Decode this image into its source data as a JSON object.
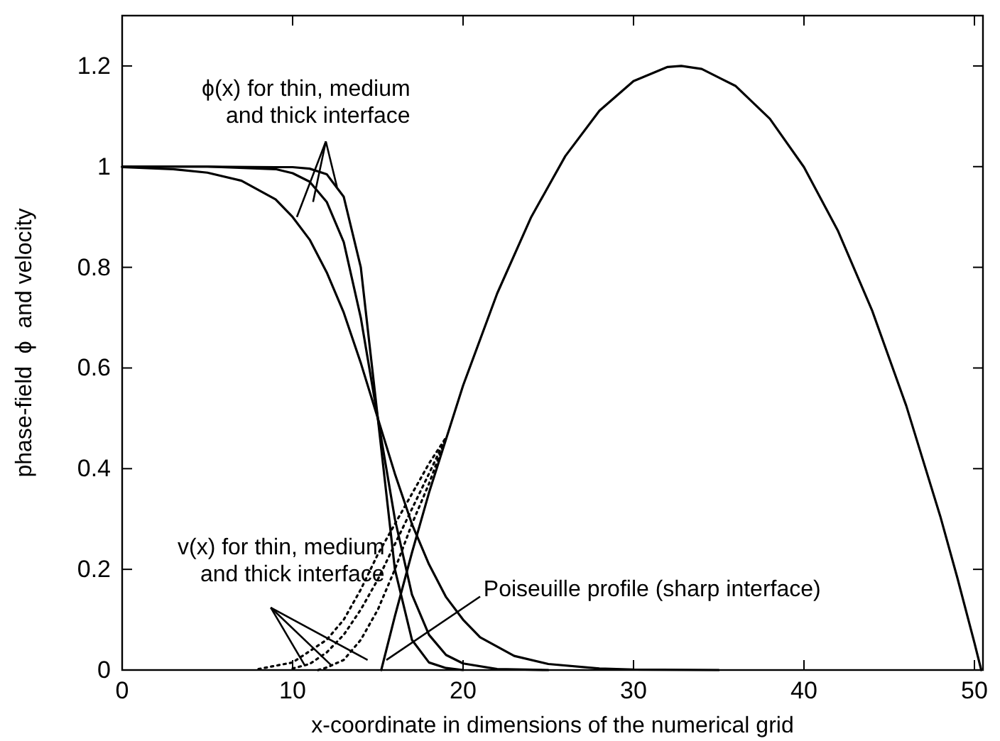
{
  "chart_data": {
    "type": "line",
    "xlabel": "x-coordinate in dimensions of the numerical grid",
    "ylabel": "phase-field  ϕ  and velocity",
    "xlim": [
      0,
      50.5
    ],
    "ylim": [
      0,
      1.3
    ],
    "xticks": [
      0,
      10,
      20,
      30,
      40,
      50
    ],
    "yticks": [
      0,
      0.2,
      0.4,
      0.6,
      0.8,
      1,
      1.2
    ],
    "grid": false,
    "series": [
      {
        "color": "#000000",
        "line_style": "solid",
        "x": [
          0,
          5,
          9,
          10,
          11,
          12,
          13,
          14,
          15,
          16,
          17,
          18,
          19,
          20
        ],
        "values": [
          1,
          1,
          0.999,
          0.999,
          0.996,
          0.985,
          0.94,
          0.8,
          0.5,
          0.2,
          0.06,
          0.015,
          0.004,
          0
        ]
      },
      {
        "color": "#000000",
        "line_style": "solid",
        "x": [
          0,
          5,
          9,
          10,
          11,
          12,
          13,
          14,
          15,
          16,
          17,
          18,
          19,
          20,
          22,
          25
        ],
        "values": [
          1,
          1,
          0.995,
          0.987,
          0.97,
          0.93,
          0.85,
          0.7,
          0.5,
          0.3,
          0.15,
          0.07,
          0.03,
          0.013,
          0.002,
          0
        ]
      },
      {
        "color": "#000000",
        "line_style": "solid",
        "x": [
          0,
          3,
          5,
          7,
          9,
          10,
          11,
          12,
          13,
          14,
          15,
          16,
          17,
          18,
          19,
          20,
          21,
          23,
          25,
          28,
          30,
          35
        ],
        "values": [
          0.999,
          0.995,
          0.988,
          0.972,
          0.935,
          0.9,
          0.855,
          0.79,
          0.71,
          0.61,
          0.5,
          0.39,
          0.29,
          0.21,
          0.145,
          0.1,
          0.065,
          0.028,
          0.012,
          0.003,
          0.001,
          0
        ]
      },
      {
        "color": "#000000",
        "line_style": "dotted",
        "x": [
          11.5,
          12,
          13,
          14,
          15,
          16,
          17,
          18,
          19
        ],
        "values": [
          0,
          0.005,
          0.02,
          0.06,
          0.12,
          0.2,
          0.29,
          0.37,
          0.462
        ]
      },
      {
        "color": "#000000",
        "line_style": "dotted",
        "x": [
          10,
          11,
          12,
          13,
          14,
          15,
          16,
          17,
          18,
          19
        ],
        "values": [
          0.003,
          0.012,
          0.035,
          0.07,
          0.12,
          0.18,
          0.25,
          0.32,
          0.39,
          0.462
        ]
      },
      {
        "color": "#000000",
        "line_style": "dotted",
        "x": [
          8,
          10,
          12,
          13,
          14,
          15,
          16,
          17,
          18,
          19
        ],
        "values": [
          0.002,
          0.015,
          0.06,
          0.1,
          0.16,
          0.23,
          0.29,
          0.35,
          0.41,
          0.462
        ]
      },
      {
        "color": "#000000",
        "line_style": "solid",
        "x": [
          15.2,
          16,
          17,
          18,
          20,
          22,
          24,
          26,
          28,
          30,
          32,
          32.8,
          34,
          36,
          38,
          40,
          42,
          44,
          46,
          48,
          49,
          50,
          50.4
        ],
        "values": [
          0,
          0.107,
          0.233,
          0.352,
          0.565,
          0.748,
          0.9,
          1.021,
          1.111,
          1.17,
          1.198,
          1.2,
          1.194,
          1.16,
          1.095,
          0.999,
          0.872,
          0.714,
          0.525,
          0.305,
          0.183,
          0.054,
          0
        ]
      }
    ],
    "annotations": [
      {
        "text": "ϕ(x) for thin, medium\nand thick interface",
        "x": 10.25,
        "y": 0.9
      },
      {
        "text": "v(x) for thin, medium\nand thick interface",
        "x": 10.7,
        "y": 0.01
      },
      {
        "text": "Poiseuille profile (sharp interface)",
        "x": 15.5,
        "y": 0.02
      }
    ]
  }
}
